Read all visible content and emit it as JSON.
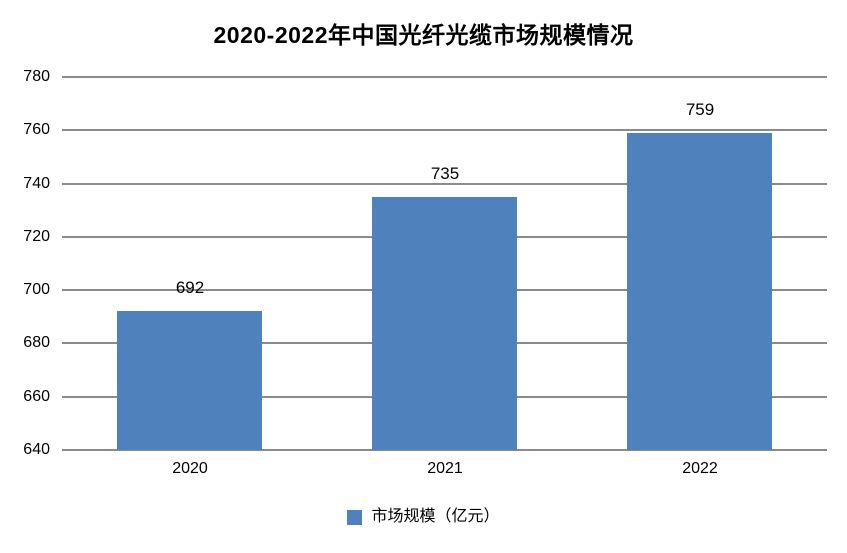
{
  "title": "2020-2022年中国光纤光缆市场规模情况",
  "legend": {
    "label": "市场规模（亿元）"
  },
  "colors": {
    "bar": "#4F81BD",
    "gridline": "#8A8A8A",
    "axis": "#8A8A8A",
    "text": "#000000",
    "background": "#FFFFFF"
  },
  "chart_data": {
    "type": "bar",
    "title": "2020-2022年中国光纤光缆市场规模情况",
    "categories": [
      "2020",
      "2021",
      "2022"
    ],
    "values": [
      692,
      735,
      759
    ],
    "series_name": "市场规模（亿元）",
    "xlabel": "",
    "ylabel": "",
    "ylim": [
      640,
      780
    ],
    "yticks": [
      640,
      660,
      680,
      700,
      720,
      740,
      760,
      780
    ],
    "grid": true,
    "data_labels": true,
    "legend_position": "bottom"
  }
}
